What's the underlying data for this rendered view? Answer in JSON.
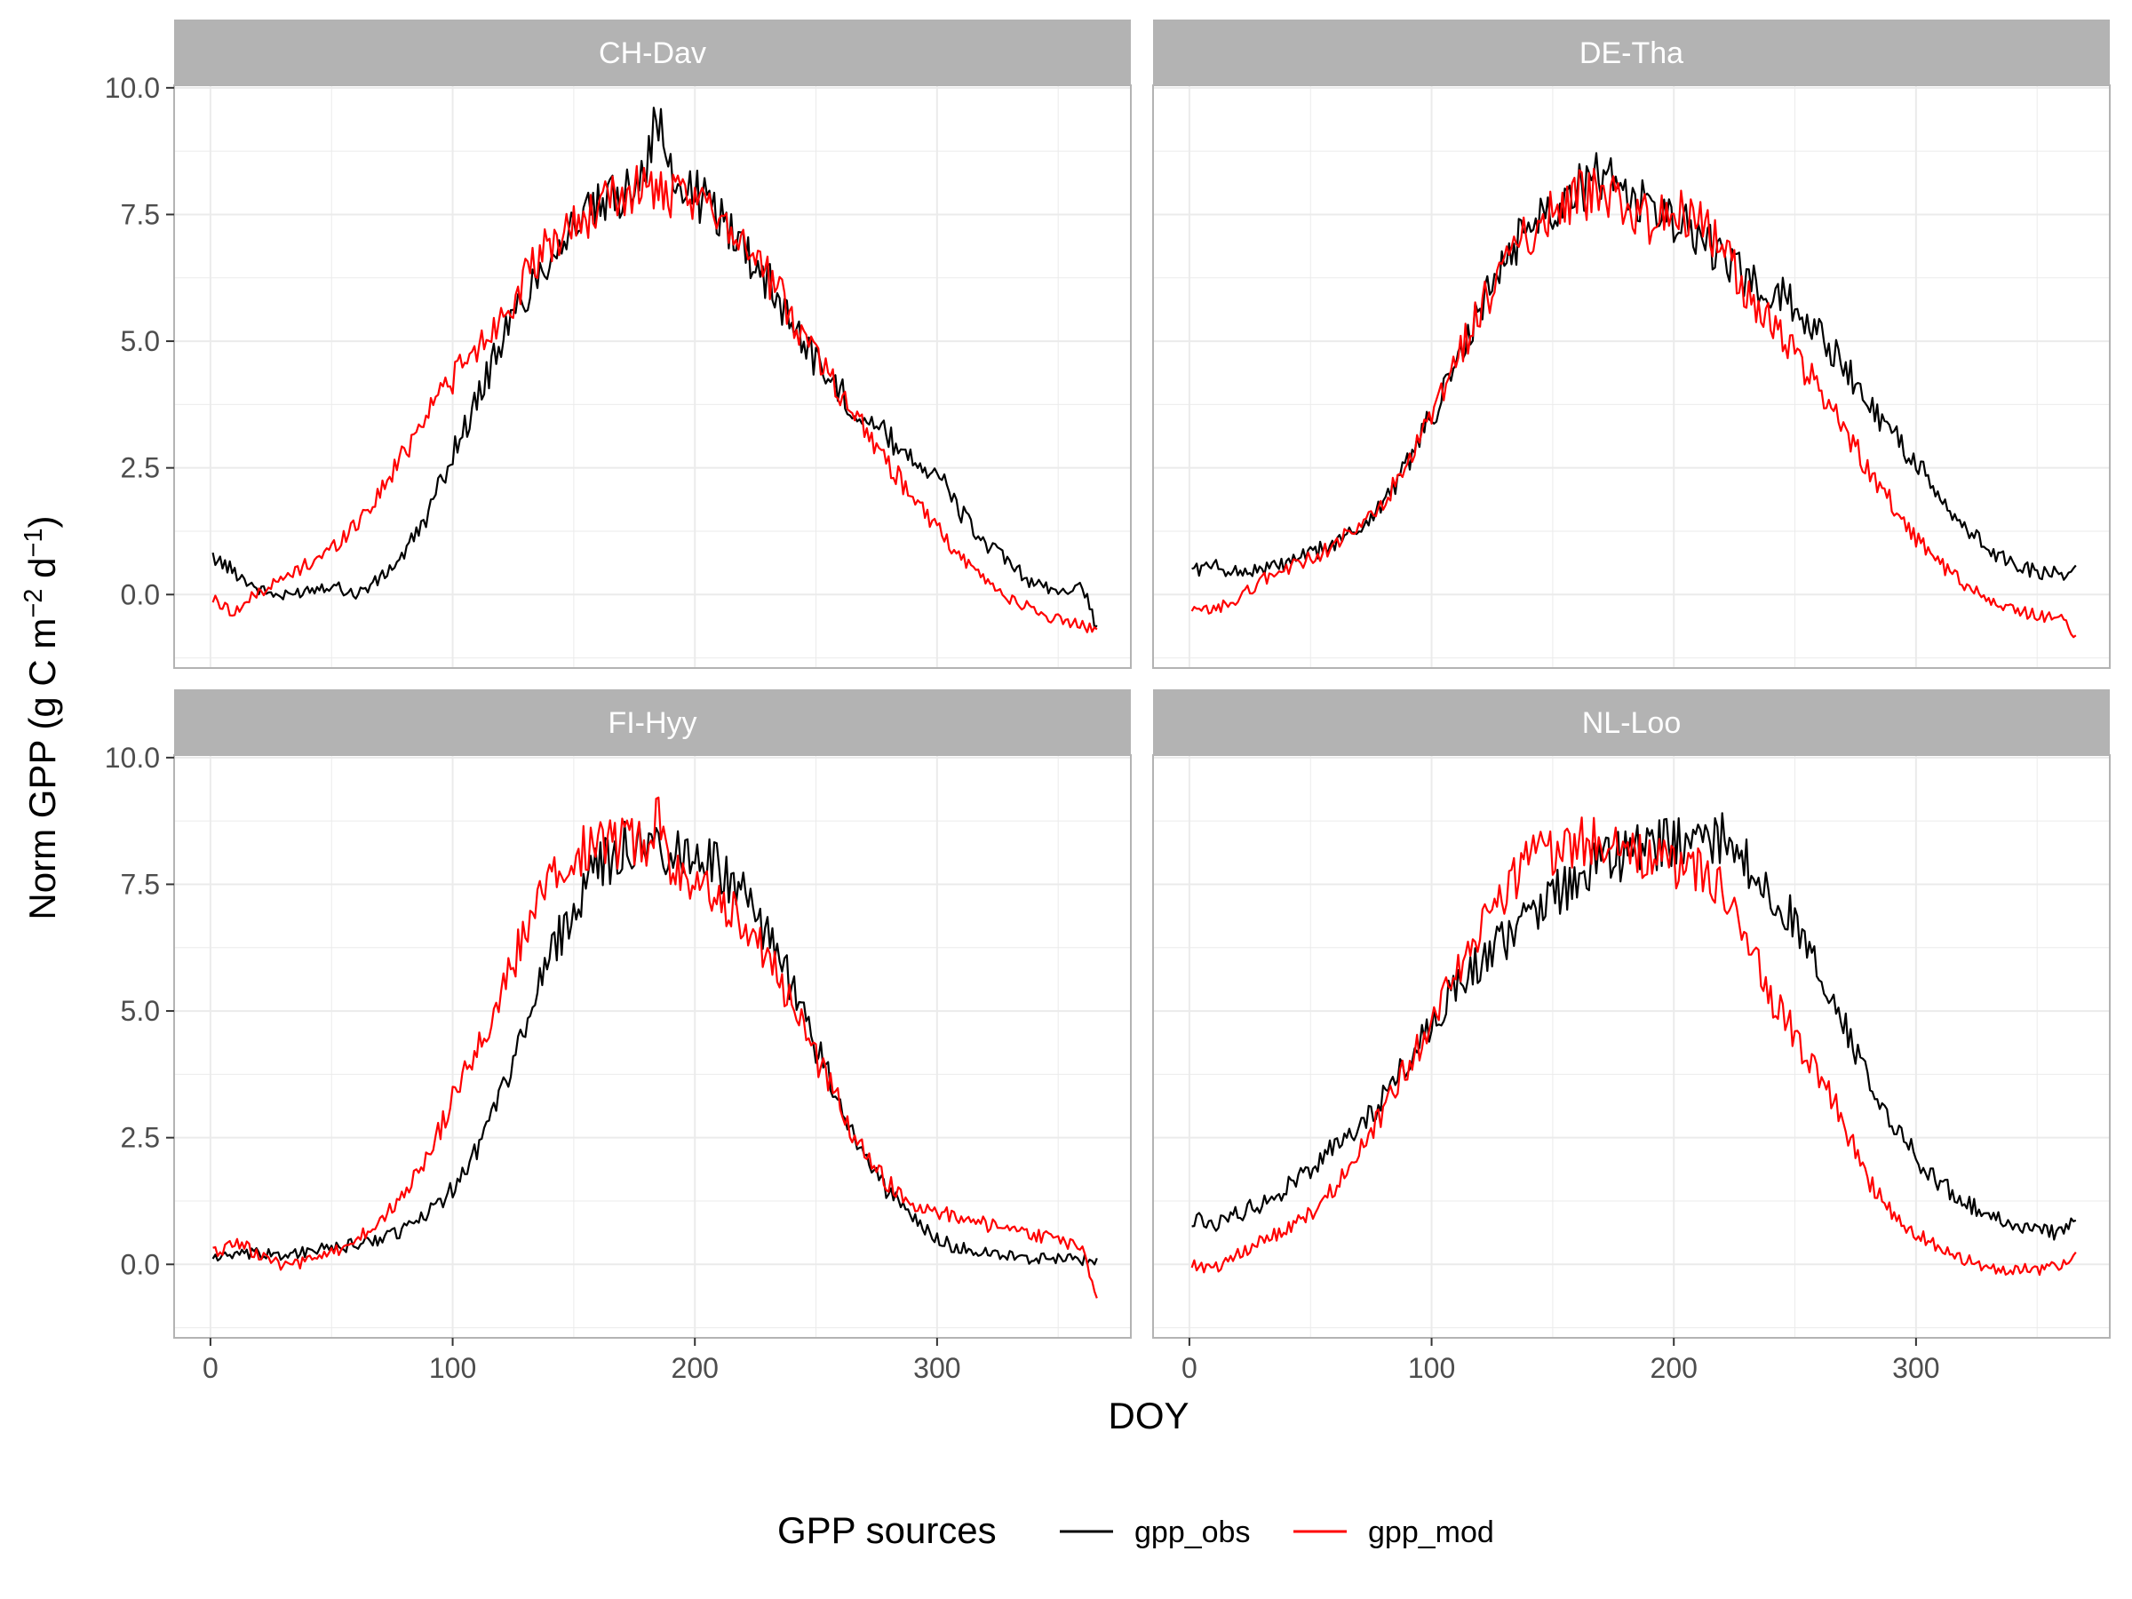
{
  "chart_data": {
    "type": "line",
    "facet_layout": "2x2",
    "xlabel": "DOY",
    "ylabel": "Norm GPP (g C m⁻² d⁻¹)",
    "ylabel_parts": {
      "main": "Norm GPP (g C m",
      "sup1": "−2",
      "mid": " d",
      "sup2": "−1",
      "end": ")"
    },
    "xlim": [
      -15,
      380
    ],
    "ylim": [
      -1.45,
      10.05
    ],
    "x_ticks": [
      0,
      100,
      200,
      300
    ],
    "x_tick_labels": [
      "0",
      "100",
      "200",
      "300"
    ],
    "y_ticks": [
      0,
      2.5,
      5,
      7.5,
      10
    ],
    "y_tick_labels": [
      "0.0",
      "2.5",
      "5.0",
      "7.5",
      "10.0"
    ],
    "grid": true,
    "legend": {
      "title": "GPP sources",
      "position": "bottom",
      "entries": [
        {
          "name": "gpp_obs",
          "color": "#000000"
        },
        {
          "name": "gpp_mod",
          "color": "#FF0000"
        }
      ]
    },
    "colors": {
      "gpp_obs": "#000000",
      "gpp_mod": "#FF0000",
      "strip": "#B3B3B3",
      "grid": "#EBEBEB",
      "panel_border": "#B3B3B3"
    },
    "panels": [
      {
        "title": "CH-Dav",
        "series": [
          {
            "name": "gpp_obs",
            "doy": [
              1,
              10,
              20,
              30,
              40,
              50,
              60,
              70,
              80,
              90,
              100,
              110,
              120,
              130,
              140,
              150,
              160,
              170,
              180,
              185,
              190,
              200,
              210,
              220,
              230,
              240,
              250,
              260,
              270,
              280,
              290,
              300,
              310,
              320,
              330,
              340,
              350,
              360,
              366
            ],
            "values": [
              0.75,
              0.45,
              0.1,
              -0.05,
              0.1,
              0.2,
              0.0,
              0.3,
              0.8,
              1.6,
              2.8,
              3.8,
              5.0,
              5.9,
              6.7,
              7.3,
              7.6,
              7.9,
              8.6,
              9.4,
              8.2,
              7.9,
              7.5,
              6.9,
              6.2,
              5.4,
              4.6,
              4.0,
              3.5,
              3.1,
              2.7,
              2.4,
              1.6,
              1.0,
              0.6,
              0.2,
              0.05,
              0.2,
              -0.7
            ]
          },
          {
            "name": "gpp_mod",
            "doy": [
              1,
              10,
              20,
              30,
              40,
              50,
              60,
              70,
              80,
              90,
              100,
              110,
              120,
              130,
              140,
              150,
              160,
              170,
              180,
              190,
              200,
              210,
              220,
              230,
              240,
              250,
              260,
              270,
              280,
              290,
              300,
              310,
              320,
              330,
              340,
              350,
              360,
              366
            ],
            "values": [
              -0.1,
              -0.35,
              0.05,
              0.3,
              0.6,
              0.9,
              1.4,
              2.0,
              2.8,
              3.7,
              4.3,
              4.8,
              5.5,
              6.2,
              6.9,
              7.3,
              7.6,
              7.9,
              8.1,
              7.8,
              7.7,
              7.6,
              7.0,
              6.3,
              5.5,
              4.8,
              4.0,
              3.3,
              2.6,
              1.9,
              1.3,
              0.7,
              0.3,
              -0.1,
              -0.3,
              -0.5,
              -0.6,
              -0.75
            ]
          }
        ]
      },
      {
        "title": "DE-Tha",
        "series": [
          {
            "name": "gpp_obs",
            "doy": [
              1,
              10,
              20,
              30,
              40,
              50,
              60,
              70,
              80,
              90,
              100,
              110,
              120,
              130,
              140,
              150,
              160,
              170,
              180,
              190,
              200,
              210,
              220,
              230,
              240,
              250,
              260,
              270,
              280,
              290,
              300,
              310,
              320,
              330,
              340,
              350,
              360,
              366
            ],
            "values": [
              0.5,
              0.55,
              0.45,
              0.5,
              0.6,
              0.8,
              1.0,
              1.3,
              1.8,
              2.6,
              3.5,
              4.5,
              5.6,
              6.6,
              7.3,
              7.7,
              8.0,
              8.3,
              8.0,
              7.6,
              7.4,
              7.1,
              6.6,
              6.2,
              6.0,
              5.7,
              5.2,
              4.5,
              3.8,
              3.2,
              2.6,
              1.9,
              1.3,
              0.9,
              0.6,
              0.45,
              0.4,
              0.5
            ]
          },
          {
            "name": "gpp_mod",
            "doy": [
              1,
              10,
              20,
              30,
              40,
              50,
              60,
              70,
              80,
              90,
              100,
              110,
              120,
              130,
              140,
              150,
              160,
              170,
              180,
              190,
              200,
              210,
              220,
              230,
              240,
              250,
              260,
              270,
              280,
              290,
              300,
              310,
              320,
              330,
              340,
              350,
              360,
              366
            ],
            "values": [
              -0.35,
              -0.3,
              -0.1,
              0.3,
              0.5,
              0.7,
              1.0,
              1.3,
              1.8,
              2.5,
              3.5,
              4.6,
              5.6,
              6.5,
              7.1,
              7.6,
              7.9,
              7.9,
              7.6,
              7.4,
              7.6,
              7.5,
              6.8,
              6.0,
              5.4,
              4.7,
              4.1,
              3.3,
              2.5,
              1.8,
              1.1,
              0.6,
              0.2,
              -0.1,
              -0.3,
              -0.4,
              -0.5,
              -0.8
            ]
          }
        ]
      },
      {
        "title": "FI-Hyy",
        "series": [
          {
            "name": "gpp_obs",
            "doy": [
              1,
              10,
              20,
              30,
              40,
              50,
              60,
              70,
              80,
              90,
              100,
              110,
              120,
              130,
              140,
              150,
              160,
              170,
              180,
              190,
              200,
              210,
              220,
              230,
              240,
              250,
              260,
              270,
              280,
              290,
              300,
              310,
              320,
              330,
              340,
              350,
              360,
              366
            ],
            "values": [
              0.15,
              0.15,
              0.2,
              0.2,
              0.25,
              0.3,
              0.4,
              0.5,
              0.7,
              1.0,
              1.5,
              2.3,
              3.4,
              4.7,
              6.0,
              7.1,
              7.8,
              8.2,
              8.3,
              8.1,
              8.1,
              7.8,
              7.3,
              6.5,
              5.5,
              4.3,
              3.2,
              2.2,
              1.4,
              0.9,
              0.5,
              0.3,
              0.2,
              0.15,
              0.1,
              0.1,
              0.1,
              0.05
            ]
          },
          {
            "name": "gpp_mod",
            "doy": [
              1,
              10,
              20,
              30,
              40,
              50,
              60,
              70,
              80,
              90,
              100,
              110,
              120,
              130,
              140,
              150,
              160,
              170,
              180,
              185,
              190,
              200,
              210,
              220,
              230,
              240,
              250,
              260,
              270,
              280,
              290,
              300,
              310,
              320,
              330,
              340,
              350,
              360,
              366
            ],
            "values": [
              0.2,
              0.45,
              0.2,
              -0.05,
              0.05,
              0.2,
              0.5,
              0.8,
              1.4,
              2.1,
              3.3,
              4.2,
              5.3,
              6.6,
              7.6,
              8.1,
              8.2,
              8.3,
              8.3,
              9.0,
              8.0,
              7.6,
              7.2,
              6.7,
              6.1,
              5.1,
              4.1,
              3.1,
              2.2,
              1.6,
              1.2,
              1.0,
              0.9,
              0.8,
              0.7,
              0.6,
              0.5,
              0.3,
              -0.6
            ]
          }
        ]
      },
      {
        "title": "NL-Loo",
        "series": [
          {
            "name": "gpp_obs",
            "doy": [
              1,
              10,
              20,
              30,
              40,
              50,
              60,
              70,
              80,
              90,
              100,
              110,
              120,
              130,
              140,
              150,
              160,
              170,
              180,
              190,
              200,
              210,
              220,
              230,
              240,
              250,
              260,
              270,
              280,
              290,
              300,
              310,
              320,
              330,
              340,
              350,
              360,
              366
            ],
            "values": [
              0.9,
              0.8,
              1.0,
              1.2,
              1.5,
              1.9,
              2.3,
              2.7,
              3.3,
              4.0,
              4.7,
              5.5,
              6.0,
              6.4,
              6.9,
              7.3,
              7.6,
              7.9,
              8.1,
              8.2,
              8.3,
              8.3,
              8.4,
              8.0,
              7.4,
              6.7,
              5.9,
              4.8,
              3.7,
              2.9,
              2.1,
              1.6,
              1.2,
              1.0,
              0.8,
              0.7,
              0.6,
              0.9
            ]
          },
          {
            "name": "gpp_mod",
            "doy": [
              1,
              10,
              20,
              30,
              40,
              50,
              60,
              70,
              80,
              90,
              100,
              110,
              120,
              130,
              140,
              150,
              160,
              170,
              180,
              190,
              200,
              210,
              220,
              230,
              240,
              250,
              260,
              270,
              280,
              290,
              300,
              310,
              320,
              330,
              340,
              350,
              360,
              366
            ],
            "values": [
              0.0,
              -0.1,
              0.2,
              0.45,
              0.7,
              1.0,
              1.5,
              2.2,
              3.0,
              3.9,
              4.8,
              5.8,
              6.6,
              7.4,
              8.0,
              8.2,
              8.3,
              8.3,
              8.1,
              7.9,
              7.9,
              7.8,
              7.3,
              6.3,
              5.3,
              4.5,
              3.8,
              2.8,
              1.7,
              1.0,
              0.6,
              0.3,
              0.1,
              -0.05,
              -0.1,
              -0.1,
              -0.05,
              0.2
            ]
          }
        ]
      }
    ]
  }
}
